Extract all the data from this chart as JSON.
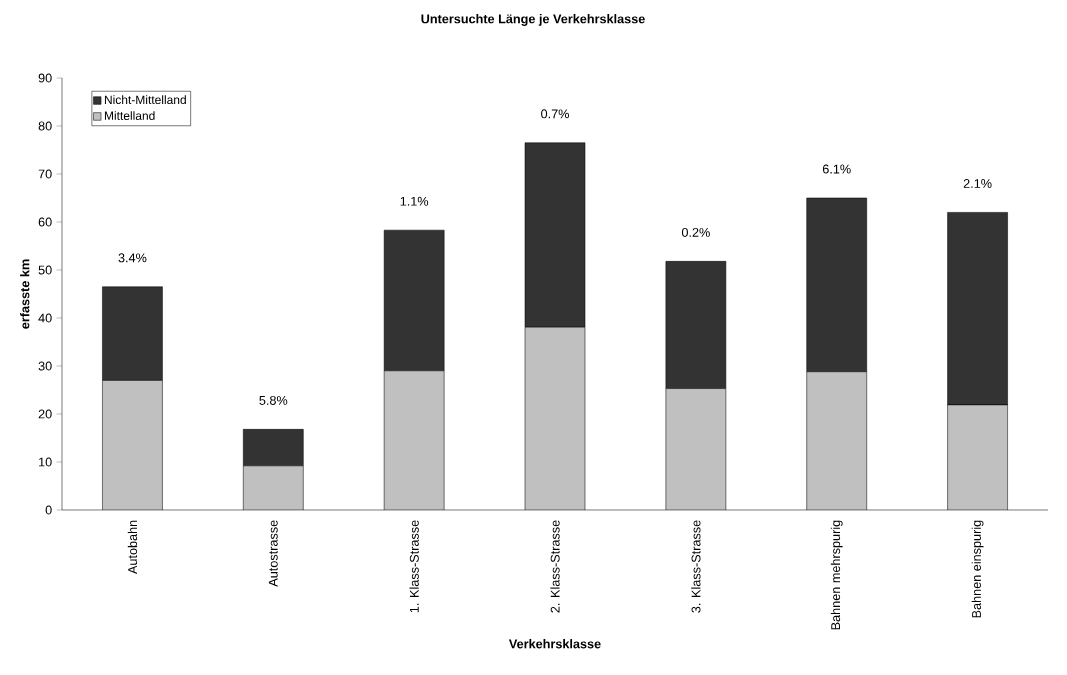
{
  "chart_data": {
    "type": "bar",
    "stacked": true,
    "title": "Untersuchte Länge je Verkehrsklasse",
    "xlabel": "Verkehrsklasse",
    "ylabel": "erfasste km",
    "categories": [
      "Autobahn",
      "Autostrasse",
      "1. Klass-Strasse",
      "2. Klass-Strasse",
      "3. Klass-Strasse",
      "Bahnen mehrspurig",
      "Bahnen einspurig"
    ],
    "series": [
      {
        "name": "Mittelland",
        "color": "#c0c0c0",
        "values": [
          27,
          9.2,
          29,
          38.1,
          25.3,
          28.8,
          21.9
        ]
      },
      {
        "name": "Nicht-Mittelland",
        "color": "#333333",
        "values": [
          19.5,
          7.6,
          29.3,
          38.4,
          26.5,
          36.2,
          40.1
        ]
      }
    ],
    "ylim": [
      0,
      90
    ],
    "yticks": [
      0,
      10,
      20,
      30,
      40,
      50,
      60,
      70,
      80,
      90
    ],
    "legend": "top left",
    "grid": false,
    "annotations": [
      "3.4%",
      "5.8%",
      "1.1%",
      "0.7%",
      "0.2%",
      "6.1%",
      "2.1%"
    ]
  }
}
